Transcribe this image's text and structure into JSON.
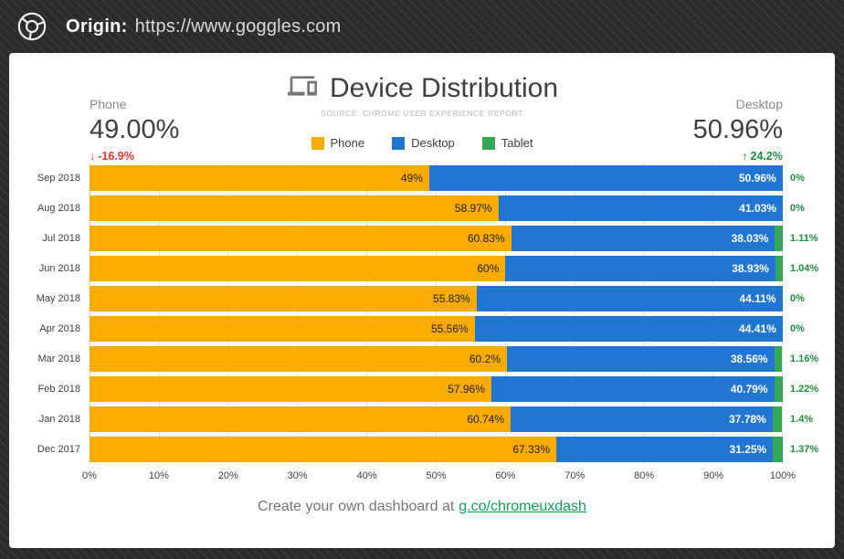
{
  "topbar": {
    "origin_label": "Origin:",
    "origin_url": "https://www.goggles.com"
  },
  "icons": {
    "down_arrow": "↓",
    "up_arrow": "↑"
  },
  "stats": {
    "phone": {
      "label": "Phone",
      "value": "49.00%",
      "delta": "-16.9%",
      "direction": "down"
    },
    "desktop": {
      "label": "Desktop",
      "value": "50.96%",
      "delta": "24.2%",
      "direction": "up"
    }
  },
  "legend": [
    {
      "label": "Phone",
      "color": "#F9AB00"
    },
    {
      "label": "Desktop",
      "color": "#2276D3"
    },
    {
      "label": "Tablet",
      "color": "#34A853"
    }
  ],
  "chart_data": {
    "type": "bar",
    "orientation": "horizontal",
    "stacked": true,
    "title": "Device Distribution",
    "subtitle": "SOURCE: CHROME USER EXPERIENCE REPORT",
    "categories": [
      "Sep 2018",
      "Aug 2018",
      "Jul 2018",
      "Jun 2018",
      "May 2018",
      "Apr 2018",
      "Mar 2018",
      "Feb 2018",
      "Jan 2018",
      "Dec 2017"
    ],
    "series": [
      {
        "name": "Phone",
        "color": "#F9AB00",
        "values": [
          49,
          58.97,
          60.83,
          60,
          55.83,
          55.56,
          60.2,
          57.96,
          60.74,
          67.33
        ],
        "labels": [
          "49%",
          "58.97%",
          "60.83%",
          "60%",
          "55.83%",
          "55.56%",
          "60.2%",
          "57.96%",
          "60.74%",
          "67.33%"
        ]
      },
      {
        "name": "Desktop",
        "color": "#2276D3",
        "values": [
          50.96,
          41.03,
          38.03,
          38.93,
          44.11,
          44.41,
          38.56,
          40.79,
          37.78,
          31.25
        ],
        "labels": [
          "50.96%",
          "41.03%",
          "38.03%",
          "38.93%",
          "44.11%",
          "44.41%",
          "38.56%",
          "40.79%",
          "37.78%",
          "31.25%"
        ]
      },
      {
        "name": "Tablet",
        "color": "#34A853",
        "values": [
          0,
          0,
          1.11,
          1.04,
          0,
          0,
          1.16,
          1.22,
          1.4,
          1.37
        ],
        "labels": [
          "0%",
          "0%",
          "1.11%",
          "1.04%",
          "0%",
          "0%",
          "1.16%",
          "1.22%",
          "1.4%",
          "1.37%"
        ]
      }
    ],
    "x_ticks": [
      "0%",
      "10%",
      "20%",
      "30%",
      "40%",
      "50%",
      "60%",
      "70%",
      "80%",
      "90%",
      "100%"
    ],
    "xlim": [
      0,
      100
    ],
    "grid": true,
    "legend_position": "top"
  },
  "footer": {
    "text": "Create your own dashboard at",
    "link": "g.co/chromeuxdash"
  },
  "colors": {
    "phone": "#F9AB00",
    "desktop": "#2276D3",
    "tablet": "#34A853",
    "tablet_text": "#1E8E3E",
    "delta_down": "#E5372E",
    "delta_up": "#1E8E3E",
    "link": "#0F9D58",
    "grid": "#E0E0E0"
  }
}
